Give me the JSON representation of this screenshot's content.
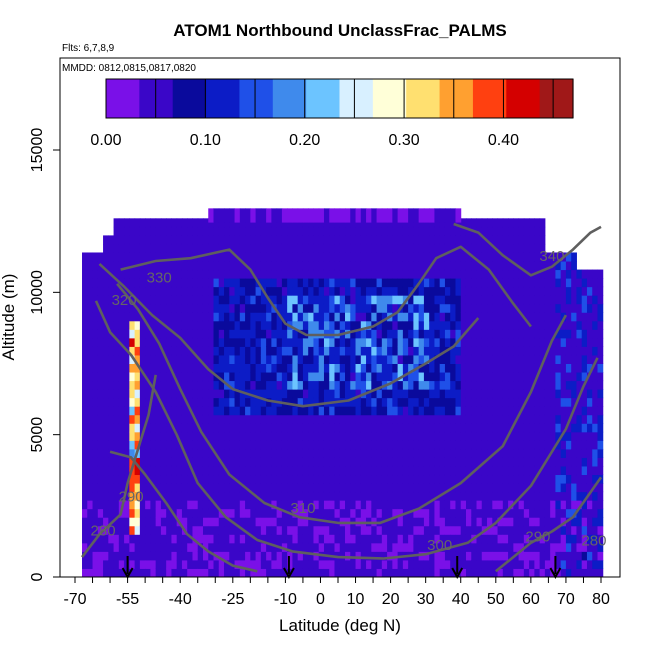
{
  "chart_data": {
    "type": "heatmap",
    "title": "ATOM1 Northbound UnclassFrac_PALMS",
    "flights_label": "Flts: 6,7,8,9",
    "dates_label": "MMDD: 0812,0815,0817,0820",
    "xlabel": "Latitude (deg N)",
    "ylabel": "Altitude (m)",
    "xlim": [
      -70,
      82
    ],
    "ylim": [
      0,
      18000
    ],
    "x_ticks": [
      -70,
      -55,
      -40,
      -25,
      -10,
      0,
      10,
      20,
      30,
      40,
      50,
      60,
      70,
      80
    ],
    "x_minor_step": 5,
    "y_ticks": [
      0,
      5000,
      10000,
      15000
    ],
    "colorbar": {
      "min": 0.0,
      "max": 0.47,
      "ticks": [
        0.0,
        0.1,
        0.2,
        0.3,
        0.4
      ],
      "tick_labels": [
        "0.00",
        "0.10",
        "0.20",
        "0.30",
        "0.40"
      ],
      "colors": [
        "#7a10e8",
        "#3a06c8",
        "#0a0a9c",
        "#0c1cc6",
        "#1f50e8",
        "#3f8aec",
        "#6cc4ff",
        "#d8f0ff",
        "#ffffd8",
        "#ffe070",
        "#ffa030",
        "#ff4010",
        "#d40000",
        "#a01818"
      ]
    },
    "contours": [
      {
        "label": "280",
        "points": [
          [
            -68,
            700
          ],
          [
            -63,
            1500
          ],
          [
            -57,
            2200
          ],
          [
            -55,
            3300
          ],
          [
            -52,
            4500
          ],
          [
            -49,
            5700
          ],
          [
            -47,
            7100
          ]
        ]
      },
      {
        "label": "290",
        "points": [
          [
            -60,
            4400
          ],
          [
            -54,
            4200
          ],
          [
            -50,
            3600
          ],
          [
            -44,
            2600
          ],
          [
            -38,
            1500
          ],
          [
            -32,
            900
          ],
          [
            -25,
            400
          ],
          [
            -18,
            200
          ]
        ]
      },
      {
        "label": "290",
        "points": [
          [
            50,
            200
          ],
          [
            55,
            700
          ],
          [
            60,
            1200
          ],
          [
            66,
            1600
          ],
          [
            72,
            2100
          ],
          [
            76,
            2800
          ],
          [
            80,
            3500
          ]
        ]
      },
      {
        "label": "300",
        "points": [
          [
            -64,
            9700
          ],
          [
            -60,
            8600
          ],
          [
            -54,
            7800
          ],
          [
            -47,
            6500
          ],
          [
            -41,
            5000
          ],
          [
            -35,
            3300
          ],
          [
            -27,
            2100
          ],
          [
            -18,
            1300
          ],
          [
            -8,
            900
          ],
          [
            5,
            700
          ],
          [
            18,
            650
          ],
          [
            30,
            800
          ],
          [
            42,
            1200
          ],
          [
            50,
            1900
          ],
          [
            60,
            3200
          ],
          [
            70,
            5200
          ],
          [
            75,
            6700
          ],
          [
            79,
            7700
          ]
        ]
      },
      {
        "label": "310",
        "points": [
          [
            -58,
            10300
          ],
          [
            -52,
            9400
          ],
          [
            -46,
            8200
          ],
          [
            -40,
            6600
          ],
          [
            -34,
            5100
          ],
          [
            -26,
            3600
          ],
          [
            -16,
            2600
          ],
          [
            -6,
            2100
          ],
          [
            5,
            1900
          ],
          [
            17,
            1900
          ],
          [
            28,
            2400
          ],
          [
            40,
            3300
          ],
          [
            52,
            4600
          ],
          [
            60,
            6500
          ],
          [
            66,
            8300
          ],
          [
            70,
            9200
          ]
        ]
      },
      {
        "label": "320",
        "points": [
          [
            -63,
            11000
          ],
          [
            -56,
            10200
          ],
          [
            -48,
            9200
          ],
          [
            -40,
            8400
          ],
          [
            -32,
            7300
          ],
          [
            -25,
            6600
          ],
          [
            -15,
            6200
          ],
          [
            -5,
            6000
          ],
          [
            8,
            6200
          ],
          [
            20,
            6800
          ],
          [
            30,
            7500
          ],
          [
            38,
            8100
          ],
          [
            45,
            9100
          ]
        ]
      },
      {
        "label": "330",
        "points": [
          [
            -57,
            10800
          ],
          [
            -47,
            11100
          ],
          [
            -37,
            11200
          ],
          [
            -26,
            11500
          ],
          [
            -20,
            10800
          ],
          [
            -15,
            9800
          ],
          [
            -10,
            8900
          ],
          [
            -4,
            8500
          ],
          [
            5,
            8500
          ],
          [
            15,
            8800
          ],
          [
            22,
            9300
          ],
          [
            28,
            10300
          ],
          [
            33,
            11200
          ],
          [
            40,
            11600
          ],
          [
            48,
            10800
          ],
          [
            55,
            9600
          ],
          [
            60,
            8800
          ]
        ]
      },
      {
        "label": "340",
        "points": [
          [
            38,
            12400
          ],
          [
            45,
            12100
          ],
          [
            52,
            11300
          ],
          [
            60,
            10600
          ],
          [
            66,
            10900
          ],
          [
            72,
            11500
          ],
          [
            77,
            12100
          ],
          [
            80,
            12300
          ]
        ]
      }
    ],
    "contour_labels": [
      {
        "text": "330",
        "x": -46,
        "y": 10350
      },
      {
        "text": "320",
        "x": -56,
        "y": 9550
      },
      {
        "text": "340",
        "x": 66,
        "y": 11100
      },
      {
        "text": "310",
        "x": -5,
        "y": 2250
      },
      {
        "text": "300",
        "x": 34,
        "y": 950
      },
      {
        "text": "290",
        "x": -54,
        "y": 2650
      },
      {
        "text": "280",
        "x": -62,
        "y": 1450
      },
      {
        "text": "290",
        "x": 62,
        "y": 1250
      },
      {
        "text": "280",
        "x": 78,
        "y": 1100
      }
    ],
    "flight_arrows_x": [
      -55,
      -9,
      39,
      67
    ],
    "grid": false,
    "legend": "colorbar top"
  }
}
